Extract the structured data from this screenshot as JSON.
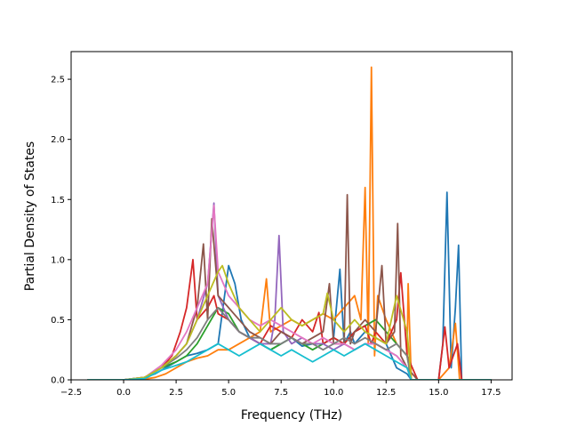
{
  "chart_data": {
    "type": "line",
    "title": "",
    "xlabel": "Frequency (THz)",
    "ylabel": "Partial Density of States",
    "xlim": [
      -2.5,
      18.5
    ],
    "ylim": [
      0.0,
      2.73
    ],
    "xticks": [
      -2.5,
      0.0,
      2.5,
      5.0,
      7.5,
      10.0,
      12.5,
      15.0,
      17.5
    ],
    "xtick_labels": [
      "−2.5",
      "0.0",
      "2.5",
      "5.0",
      "7.5",
      "10.0",
      "12.5",
      "15.0",
      "17.5"
    ],
    "yticks": [
      0.0,
      0.5,
      1.0,
      1.5,
      2.0,
      2.5
    ],
    "ytick_labels": [
      "0.0",
      "0.5",
      "1.0",
      "1.5",
      "2.0",
      "2.5"
    ],
    "grid": false,
    "legend": "none",
    "series": [
      {
        "color": "#1f77b4",
        "x": [
          -1.7,
          0.0,
          0.8,
          1.5,
          2.0,
          2.5,
          3.0,
          3.5,
          4.0,
          4.5,
          5.0,
          5.3,
          5.6,
          6.0,
          6.5,
          7.0,
          7.5,
          8.0,
          8.5,
          9.0,
          9.5,
          10.0,
          10.3,
          10.5,
          10.8,
          11.0,
          11.5,
          12.0,
          12.5,
          13.0,
          13.5,
          13.7,
          14.0,
          15.0,
          15.2,
          15.4,
          15.6,
          15.8,
          15.95,
          16.1,
          17.5
        ],
        "y": [
          0.0,
          0.0,
          0.01,
          0.05,
          0.1,
          0.15,
          0.2,
          0.22,
          0.25,
          0.3,
          0.95,
          0.8,
          0.5,
          0.35,
          0.3,
          0.25,
          0.3,
          0.35,
          0.28,
          0.3,
          0.3,
          0.35,
          0.92,
          0.3,
          0.4,
          0.3,
          0.4,
          0.35,
          0.3,
          0.1,
          0.05,
          0.0,
          0.0,
          0.0,
          0.3,
          1.56,
          0.1,
          0.6,
          1.12,
          0.0,
          0.0
        ]
      },
      {
        "color": "#ff7f0e",
        "x": [
          -1.7,
          0.0,
          0.8,
          1.5,
          2.0,
          2.5,
          3.0,
          3.5,
          4.0,
          4.5,
          5.0,
          5.5,
          6.0,
          6.5,
          6.8,
          7.0,
          7.5,
          8.0,
          8.5,
          9.0,
          9.5,
          10.0,
          10.5,
          11.0,
          11.3,
          11.5,
          11.65,
          11.8,
          11.95,
          12.1,
          12.5,
          13.0,
          13.5,
          13.55,
          13.7,
          14.0,
          15.0,
          15.5,
          15.8,
          16.0,
          17.5
        ],
        "y": [
          0.0,
          0.0,
          0.0,
          0.02,
          0.05,
          0.1,
          0.15,
          0.18,
          0.2,
          0.25,
          0.25,
          0.3,
          0.35,
          0.4,
          0.84,
          0.4,
          0.45,
          0.5,
          0.45,
          0.5,
          0.55,
          0.5,
          0.6,
          0.7,
          0.5,
          1.6,
          0.3,
          2.6,
          0.2,
          0.7,
          0.5,
          0.3,
          0.2,
          0.8,
          0.0,
          0.0,
          0.0,
          0.1,
          0.47,
          0.0,
          0.0
        ]
      },
      {
        "color": "#2ca02c",
        "x": [
          -1.7,
          0.0,
          1.0,
          1.8,
          2.5,
          3.0,
          3.5,
          4.0,
          4.5,
          5.0,
          5.5,
          6.0,
          6.5,
          7.0,
          7.5,
          8.0,
          8.5,
          9.0,
          9.5,
          10.0,
          10.5,
          11.0,
          11.5,
          12.0,
          12.5,
          13.0,
          13.5,
          13.7,
          17.5
        ],
        "y": [
          0.0,
          0.0,
          0.02,
          0.1,
          0.15,
          0.2,
          0.3,
          0.45,
          0.6,
          0.55,
          0.4,
          0.35,
          0.3,
          0.25,
          0.3,
          0.35,
          0.3,
          0.25,
          0.3,
          0.35,
          0.3,
          0.4,
          0.45,
          0.5,
          0.4,
          0.3,
          0.2,
          0.0,
          0.0
        ]
      },
      {
        "color": "#d62728",
        "x": [
          -1.7,
          0.0,
          1.0,
          1.8,
          2.3,
          2.7,
          3.0,
          3.3,
          3.5,
          4.0,
          4.3,
          4.5,
          5.0,
          5.5,
          6.0,
          6.5,
          7.0,
          7.5,
          8.0,
          8.5,
          9.0,
          9.3,
          9.5,
          10.0,
          10.5,
          11.0,
          11.5,
          11.8,
          12.0,
          12.5,
          13.0,
          13.2,
          13.5,
          14.0,
          15.0,
          15.3,
          15.5,
          15.9,
          16.1,
          17.5
        ],
        "y": [
          0.0,
          0.0,
          0.02,
          0.1,
          0.2,
          0.4,
          0.6,
          1.0,
          0.5,
          0.6,
          0.7,
          0.55,
          0.5,
          0.4,
          0.35,
          0.3,
          0.45,
          0.4,
          0.35,
          0.5,
          0.4,
          0.56,
          0.3,
          0.35,
          0.3,
          0.4,
          0.45,
          0.3,
          0.4,
          0.3,
          0.5,
          0.89,
          0.2,
          0.0,
          0.0,
          0.44,
          0.1,
          0.3,
          0.0,
          0.0
        ]
      },
      {
        "color": "#9467bd",
        "x": [
          -1.7,
          0.0,
          1.0,
          1.8,
          2.5,
          3.0,
          3.5,
          4.0,
          4.3,
          4.5,
          5.0,
          5.5,
          6.0,
          6.5,
          7.0,
          7.2,
          7.4,
          7.6,
          8.0,
          8.5,
          9.0,
          9.5,
          10.0,
          10.5,
          11.0,
          11.5,
          12.0,
          12.5,
          13.0,
          13.5,
          13.7,
          17.5
        ],
        "y": [
          0.0,
          0.0,
          0.02,
          0.1,
          0.2,
          0.3,
          0.5,
          0.8,
          1.47,
          0.7,
          0.5,
          0.4,
          0.35,
          0.3,
          0.3,
          0.5,
          1.2,
          0.4,
          0.3,
          0.35,
          0.3,
          0.3,
          0.25,
          0.3,
          0.25,
          0.3,
          0.3,
          0.25,
          0.2,
          0.1,
          0.0,
          0.0
        ]
      },
      {
        "color": "#8c564b",
        "x": [
          -1.7,
          0.0,
          1.0,
          1.8,
          2.5,
          3.0,
          3.5,
          3.8,
          4.0,
          4.2,
          4.5,
          5.0,
          5.5,
          6.0,
          6.5,
          7.0,
          7.5,
          8.0,
          8.5,
          9.0,
          9.5,
          9.8,
          10.0,
          10.5,
          10.65,
          10.8,
          11.0,
          11.5,
          12.0,
          12.3,
          12.5,
          12.9,
          13.05,
          13.2,
          13.5,
          14.0,
          17.5
        ],
        "y": [
          0.0,
          0.0,
          0.02,
          0.1,
          0.2,
          0.3,
          0.6,
          1.13,
          0.5,
          1.34,
          0.7,
          0.6,
          0.5,
          0.4,
          0.35,
          0.3,
          0.4,
          0.35,
          0.3,
          0.35,
          0.4,
          0.8,
          0.3,
          0.3,
          1.54,
          0.3,
          0.4,
          0.5,
          0.4,
          0.95,
          0.3,
          0.4,
          1.3,
          0.2,
          0.1,
          0.0,
          0.0
        ]
      },
      {
        "color": "#e377c2",
        "x": [
          -1.7,
          0.0,
          1.0,
          1.8,
          2.5,
          3.0,
          3.5,
          4.0,
          4.3,
          4.5,
          5.0,
          5.5,
          6.0,
          6.5,
          7.0,
          7.5,
          8.0,
          8.5,
          9.0,
          9.5,
          10.0,
          10.5,
          11.0,
          11.5,
          12.0,
          12.5,
          13.0,
          13.5,
          13.7,
          17.5
        ],
        "y": [
          0.0,
          0.0,
          0.02,
          0.12,
          0.25,
          0.4,
          0.6,
          0.8,
          1.45,
          0.9,
          0.7,
          0.6,
          0.5,
          0.45,
          0.5,
          0.45,
          0.4,
          0.35,
          0.3,
          0.35,
          0.3,
          0.3,
          0.25,
          0.3,
          0.3,
          0.25,
          0.2,
          0.1,
          0.0,
          0.0
        ]
      },
      {
        "color": "#7f7f7f",
        "x": [
          -1.7,
          0.0,
          1.0,
          1.8,
          2.5,
          3.0,
          3.5,
          4.0,
          4.5,
          5.0,
          5.5,
          6.0,
          6.5,
          7.0,
          7.5,
          8.0,
          8.5,
          9.0,
          9.5,
          10.0,
          10.5,
          11.0,
          11.5,
          12.0,
          12.5,
          13.0,
          13.5,
          13.7,
          17.5
        ],
        "y": [
          0.0,
          0.0,
          0.02,
          0.1,
          0.18,
          0.25,
          0.35,
          0.5,
          0.6,
          0.5,
          0.4,
          0.35,
          0.35,
          0.3,
          0.3,
          0.35,
          0.3,
          0.3,
          0.25,
          0.3,
          0.35,
          0.3,
          0.35,
          0.3,
          0.25,
          0.3,
          0.2,
          0.0,
          0.0
        ]
      },
      {
        "color": "#bcbd22",
        "x": [
          -1.7,
          0.0,
          1.0,
          1.8,
          2.5,
          3.0,
          3.5,
          4.0,
          4.5,
          4.7,
          5.0,
          5.5,
          6.0,
          6.5,
          7.0,
          7.5,
          8.0,
          8.5,
          9.0,
          9.5,
          9.7,
          10.0,
          10.5,
          11.0,
          11.5,
          12.0,
          12.5,
          13.0,
          13.5,
          13.7,
          17.5
        ],
        "y": [
          0.0,
          0.0,
          0.02,
          0.1,
          0.2,
          0.3,
          0.5,
          0.7,
          0.9,
          0.95,
          0.8,
          0.6,
          0.5,
          0.4,
          0.5,
          0.6,
          0.5,
          0.45,
          0.5,
          0.55,
          0.72,
          0.5,
          0.4,
          0.5,
          0.4,
          0.35,
          0.3,
          0.7,
          0.4,
          0.0,
          0.0
        ]
      },
      {
        "color": "#17becf",
        "x": [
          -1.7,
          0.0,
          1.0,
          1.8,
          2.5,
          3.0,
          3.5,
          4.0,
          4.5,
          5.0,
          5.5,
          6.0,
          6.5,
          7.0,
          7.5,
          8.0,
          8.5,
          9.0,
          9.5,
          10.0,
          10.5,
          11.0,
          11.5,
          12.0,
          12.5,
          13.0,
          13.5,
          13.7,
          17.5
        ],
        "y": [
          0.0,
          0.0,
          0.01,
          0.08,
          0.12,
          0.15,
          0.2,
          0.25,
          0.3,
          0.25,
          0.2,
          0.25,
          0.3,
          0.25,
          0.2,
          0.25,
          0.2,
          0.15,
          0.2,
          0.25,
          0.2,
          0.25,
          0.3,
          0.25,
          0.2,
          0.15,
          0.1,
          0.0,
          0.0
        ]
      }
    ]
  }
}
